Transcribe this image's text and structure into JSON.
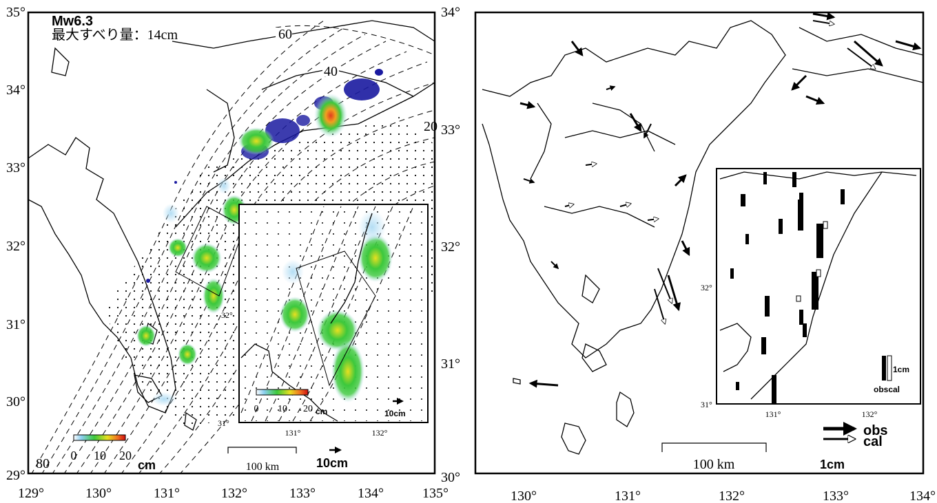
{
  "left_map": {
    "magnitude": "Mw6.3",
    "max_slip": "最大すべり量：14cm",
    "lat_labels": [
      "35°",
      "34°",
      "33°",
      "32°",
      "31°",
      "30°",
      "29°"
    ],
    "lon_labels": [
      "129°",
      "130°",
      "131°",
      "132°",
      "133°",
      "134°",
      "135°"
    ],
    "contour_labels": [
      "60",
      "40",
      "20",
      "80"
    ],
    "colorbar": {
      "ticks": [
        "0",
        "10",
        "20"
      ],
      "unit": "cm"
    },
    "scale_bar": "100 km",
    "vector_scale": "10cm",
    "inset": {
      "lat_labels": [
        "32°",
        "31°"
      ],
      "lon_labels": [
        "131°",
        "132°"
      ],
      "colorbar_ticks": [
        "0",
        "10",
        "20"
      ],
      "colorbar_unit": "cm",
      "vector_scale": "10cm"
    }
  },
  "right_map": {
    "lat_labels": [
      "34°",
      "33°",
      "32°",
      "31°",
      "30°"
    ],
    "lon_labels": [
      "130°",
      "131°",
      "132°",
      "133°",
      "134°"
    ],
    "scale_bar": "100 km",
    "vector_scale": "1cm",
    "legend": {
      "obs": "obs",
      "cal": "cal"
    },
    "inset": {
      "lat_labels": [
        "32°",
        "31°"
      ],
      "lon_labels": [
        "131°",
        "132°"
      ],
      "vertical_scale": "1cm",
      "vertical_legend": "obscal"
    }
  },
  "colors": {
    "epicenters": "#1a1aa0",
    "slip_low": "#3cc83c",
    "slip_high": "#e03c1e",
    "halo": "#b4def4"
  }
}
